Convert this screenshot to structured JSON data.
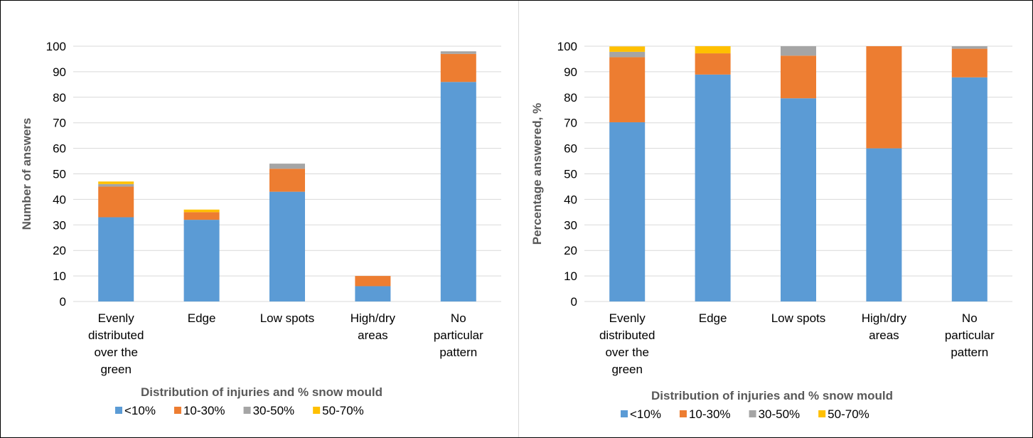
{
  "chart_data": [
    {
      "type": "bar",
      "stacked": true,
      "categories": [
        [
          "Evenly",
          "distributed",
          "over the",
          "green"
        ],
        [
          "Edge"
        ],
        [
          "Low spots"
        ],
        [
          "High/dry",
          "areas"
        ],
        [
          "No",
          "particular",
          "pattern"
        ]
      ],
      "series": [
        {
          "name": "<10%",
          "color": "#5B9BD5",
          "values": [
            33,
            32,
            43,
            6,
            86
          ]
        },
        {
          "name": "10-30%",
          "color": "#ED7D31",
          "values": [
            12,
            3,
            9,
            4,
            11
          ]
        },
        {
          "name": "30-50%",
          "color": "#A5A5A5",
          "values": [
            1,
            0,
            2,
            0,
            1
          ]
        },
        {
          "name": "50-70%",
          "color": "#FFC000",
          "values": [
            1,
            1,
            0,
            0,
            0
          ]
        }
      ],
      "ylabel": "Number of answers",
      "xlabel": "",
      "ylim": [
        0,
        100
      ],
      "yticks": [
        "0",
        "10",
        "20",
        "30",
        "40",
        "50",
        "60",
        "70",
        "80",
        "90",
        "100"
      ],
      "grid": true,
      "legend_title": "Distribution  of injuries and % snow  mould",
      "legend_position": "bottom"
    },
    {
      "type": "bar",
      "stacked": true,
      "categories": [
        [
          "Evenly",
          "distributed",
          "over the",
          "green"
        ],
        [
          "Edge"
        ],
        [
          "Low spots"
        ],
        [
          "High/dry",
          "areas"
        ],
        [
          "No",
          "particular",
          "pattern"
        ]
      ],
      "series": [
        {
          "name": "<10%",
          "color": "#5B9BD5",
          "values": [
            70.2,
            88.9,
            79.6,
            60,
            87.8
          ]
        },
        {
          "name": "10-30%",
          "color": "#ED7D31",
          "values": [
            25.5,
            8.3,
            16.7,
            40,
            11.2
          ]
        },
        {
          "name": "30-50%",
          "color": "#A5A5A5",
          "values": [
            2.1,
            0,
            3.7,
            0,
            1.0
          ]
        },
        {
          "name": "50-70%",
          "color": "#FFC000",
          "values": [
            2.1,
            2.8,
            0,
            0,
            0
          ]
        }
      ],
      "ylabel": "Percentage answered, %",
      "xlabel": "",
      "ylim": [
        0,
        100
      ],
      "yticks": [
        "0",
        "10",
        "20",
        "30",
        "40",
        "50",
        "60",
        "70",
        "80",
        "90",
        "100"
      ],
      "grid": true,
      "legend_title": "Distribution  of injuries and % snow  mould",
      "legend_position": "bottom"
    }
  ]
}
